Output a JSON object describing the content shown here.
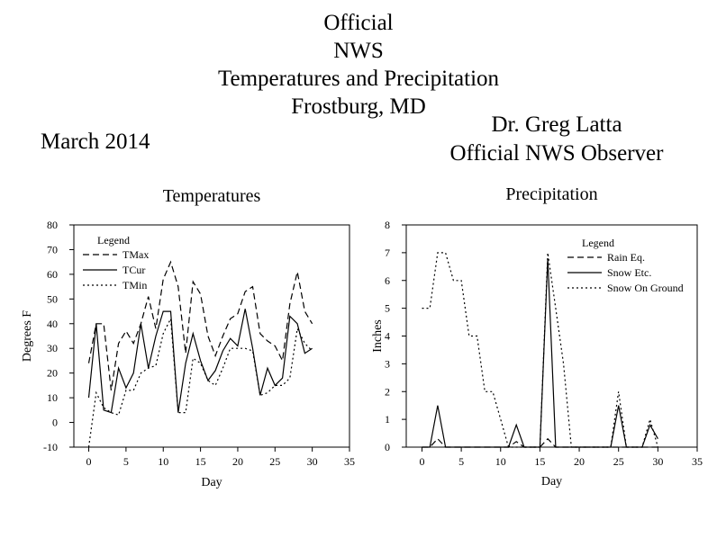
{
  "header": {
    "title_lines": [
      "Official",
      "NWS",
      "Temperatures and Precipitation",
      "Frostburg, MD"
    ],
    "month": "March 2014",
    "observer_name": "Dr. Greg Latta",
    "observer_title": "Official NWS Observer"
  },
  "chart_data": [
    {
      "type": "line",
      "title": "Temperatures",
      "xlabel": "Day",
      "ylabel": "Degrees F",
      "xlim": [
        -2,
        35
      ],
      "ylim": [
        -10,
        80
      ],
      "xticks": [
        0,
        5,
        10,
        15,
        20,
        25,
        30,
        35
      ],
      "yticks": [
        -10,
        0,
        10,
        20,
        30,
        40,
        50,
        60,
        70,
        80
      ],
      "grid": false,
      "legend_title": "Legend",
      "legend_position": "top-left",
      "series": [
        {
          "name": "TMax",
          "style": "dashed",
          "x": [
            0,
            1,
            2,
            3,
            4,
            5,
            6,
            7,
            8,
            9,
            10,
            11,
            12,
            13,
            14,
            15,
            16,
            17,
            18,
            19,
            20,
            21,
            22,
            23,
            24,
            25,
            26,
            27,
            28,
            29,
            30
          ],
          "y": [
            24,
            40,
            40,
            13,
            32,
            37,
            32,
            40,
            51,
            38,
            58,
            65,
            55,
            28,
            57,
            52,
            35,
            27,
            35,
            42,
            44,
            53,
            55,
            36,
            33,
            31,
            25,
            48,
            61,
            45,
            40
          ]
        },
        {
          "name": "TCur",
          "style": "solid",
          "x": [
            0,
            1,
            2,
            3,
            4,
            5,
            6,
            7,
            8,
            9,
            10,
            11,
            12,
            13,
            14,
            15,
            16,
            17,
            18,
            19,
            20,
            21,
            22,
            23,
            24,
            25,
            26,
            27,
            28,
            29,
            30
          ],
          "y": [
            10,
            40,
            5,
            4,
            22,
            14,
            20,
            40,
            22,
            35,
            45,
            45,
            4,
            24,
            36,
            25,
            17,
            21,
            29,
            34,
            31,
            46,
            30,
            11,
            22,
            15,
            18,
            43,
            40,
            28,
            30
          ]
        },
        {
          "name": "TMin",
          "style": "dotted",
          "x": [
            0,
            1,
            2,
            3,
            4,
            5,
            6,
            7,
            8,
            9,
            10,
            11,
            12,
            13,
            14,
            15,
            16,
            17,
            18,
            19,
            20,
            21,
            22,
            23,
            24,
            25,
            26,
            27,
            28,
            29,
            30
          ],
          "y": [
            -10,
            12,
            6,
            4,
            3,
            13,
            13,
            20,
            22,
            23,
            36,
            42,
            4,
            4,
            26,
            24,
            17,
            15,
            22,
            30,
            30,
            30,
            29,
            11,
            12,
            15,
            15,
            18,
            38,
            32,
            29
          ]
        }
      ]
    },
    {
      "type": "line",
      "title": "Precipitation",
      "xlabel": "Day",
      "ylabel": "Inches",
      "xlim": [
        -2,
        35
      ],
      "ylim": [
        0,
        8
      ],
      "xticks": [
        0,
        5,
        10,
        15,
        20,
        25,
        30,
        35
      ],
      "yticks": [
        0,
        1,
        2,
        3,
        4,
        5,
        6,
        7,
        8
      ],
      "grid": false,
      "legend_title": "Legend",
      "legend_position": "top-right",
      "series": [
        {
          "name": "Rain Eq.",
          "style": "dashed",
          "x": [
            0,
            1,
            2,
            3,
            4,
            5,
            6,
            7,
            8,
            9,
            10,
            11,
            12,
            13,
            14,
            15,
            16,
            17,
            18,
            19,
            20,
            21,
            22,
            23,
            24,
            25,
            26,
            27,
            28,
            29,
            30
          ],
          "y": [
            0,
            0,
            0.3,
            0,
            0,
            0,
            0,
            0,
            0,
            0,
            0,
            0,
            0.2,
            0,
            0,
            0,
            0.3,
            0,
            0,
            0,
            0,
            0,
            0,
            0,
            0,
            0,
            0,
            0,
            0,
            0,
            0
          ]
        },
        {
          "name": "Snow Etc.",
          "style": "solid",
          "x": [
            0,
            1,
            2,
            3,
            4,
            5,
            6,
            7,
            8,
            9,
            10,
            11,
            12,
            13,
            14,
            15,
            16,
            17,
            18,
            19,
            20,
            21,
            22,
            23,
            24,
            25,
            26,
            27,
            28,
            29,
            30
          ],
          "y": [
            0,
            0,
            1.5,
            0,
            0,
            0,
            0,
            0,
            0,
            0,
            0,
            0,
            0.8,
            0,
            0,
            0,
            6.8,
            0,
            0,
            0,
            0,
            0,
            0,
            0,
            0,
            1.5,
            0,
            0,
            0,
            0.8,
            0.3
          ]
        },
        {
          "name": "Snow On Ground",
          "style": "dotted",
          "x": [
            0,
            1,
            2,
            3,
            4,
            5,
            6,
            7,
            8,
            9,
            10,
            11,
            12,
            13,
            14,
            15,
            16,
            17,
            18,
            19,
            20,
            21,
            22,
            23,
            24,
            25,
            26,
            27,
            28,
            29,
            30
          ],
          "y": [
            5,
            5,
            7,
            7,
            6,
            6,
            4,
            4,
            2,
            2,
            1,
            0,
            0,
            0,
            0,
            0,
            7,
            5,
            3,
            0,
            0,
            0,
            0,
            0,
            0,
            2,
            0,
            0,
            0,
            1,
            0
          ]
        }
      ]
    }
  ]
}
